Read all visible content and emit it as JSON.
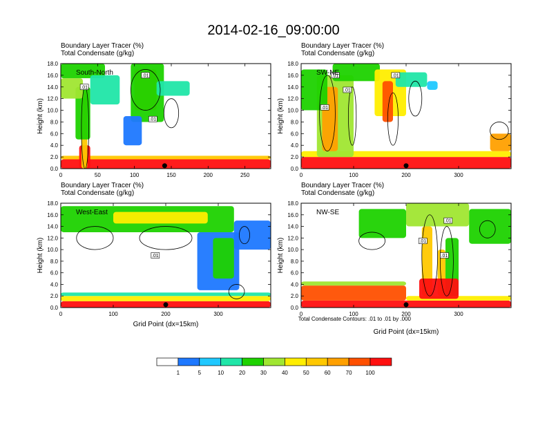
{
  "figure": {
    "title": "2014-02-16_09:00:00",
    "y_label": "Height (km)",
    "x_label": "Grid Point (dx=15km)",
    "line1": "Boundary Layer Tracer    (%)",
    "line2": "Total Condensate    (g/kg)",
    "contour_note": "Total Condensate Contours: .01 to .01 by .000",
    "contour_label": ".01"
  },
  "colors": {
    "palette": [
      "#ffffff",
      "#1e78ff",
      "#20c8ff",
      "#20e6a8",
      "#1ed200",
      "#a0e632",
      "#ffee00",
      "#ffc800",
      "#ffa000",
      "#ff5000",
      "#ff1010"
    ],
    "levels": [
      1,
      5,
      10,
      20,
      30,
      40,
      50,
      60,
      70,
      100
    ]
  },
  "chart_data": [
    {
      "type": "heatmap",
      "cross_section": "South-North",
      "xlim": [
        0,
        285
      ],
      "ylim": [
        0,
        18
      ],
      "x_ticks": [
        0,
        50,
        100,
        150,
        200,
        250
      ],
      "y_ticks": [
        0,
        2,
        4,
        6,
        8,
        10,
        12,
        14,
        16,
        18
      ],
      "y_tick_labels": [
        "0.0",
        "2.0",
        "4.0",
        "6.0",
        "8.0",
        "10.0",
        "12.0",
        "14.0",
        "16.0",
        "18.0"
      ],
      "marker_x": 141,
      "features": [
        {
          "x0": 0,
          "x1": 285,
          "z0": 0,
          "z1": 1.6,
          "v": 100
        },
        {
          "x0": 0,
          "x1": 285,
          "z0": 1.6,
          "z1": 2.2,
          "v": 55
        },
        {
          "x0": 25,
          "x1": 40,
          "z0": 0,
          "z1": 4,
          "v": 100
        },
        {
          "x0": 28,
          "x1": 36,
          "z0": 0,
          "z1": 14,
          "v": 55
        },
        {
          "x0": 20,
          "x1": 40,
          "z0": 5,
          "z1": 14,
          "v": 25
        },
        {
          "x0": 0,
          "x1": 30,
          "z0": 12,
          "z1": 15.5,
          "v": 30
        },
        {
          "x0": 0,
          "x1": 60,
          "z0": 15.5,
          "z1": 18,
          "v": 25
        },
        {
          "x0": 40,
          "x1": 80,
          "z0": 11,
          "z1": 16,
          "v": 12
        },
        {
          "x0": 100,
          "x1": 130,
          "z0": 10,
          "z1": 17,
          "v": 65
        },
        {
          "x0": 95,
          "x1": 140,
          "z0": 8,
          "z1": 18,
          "v": 20
        },
        {
          "x0": 85,
          "x1": 110,
          "z0": 4,
          "z1": 9,
          "v": 3
        },
        {
          "x0": 130,
          "x1": 175,
          "z0": 12.5,
          "z1": 15,
          "v": 12
        }
      ],
      "contours": [
        {
          "x0": 28,
          "x1": 38,
          "z0": 0,
          "z1": 14
        },
        {
          "x0": 95,
          "x1": 135,
          "z0": 10,
          "z1": 17
        },
        {
          "x0": 140,
          "x1": 160,
          "z0": 7,
          "z1": 12
        }
      ],
      "contour_labels": [
        {
          "x": 32,
          "z": 14
        },
        {
          "x": 115,
          "z": 16
        },
        {
          "x": 125,
          "z": 8.5
        }
      ]
    },
    {
      "type": "heatmap",
      "cross_section": "SW-NE",
      "xlim": [
        0,
        400
      ],
      "ylim": [
        0,
        18
      ],
      "x_ticks": [
        0,
        100,
        200,
        300
      ],
      "y_ticks": [
        0,
        2,
        4,
        6,
        8,
        10,
        12,
        14,
        16,
        18
      ],
      "y_tick_labels": [
        "0.0",
        "2.0",
        "4.0",
        "6.0",
        "8.0",
        "10.0",
        "12.0",
        "14.0",
        "16.0",
        "18.0"
      ],
      "marker_x": 200,
      "features": [
        {
          "x0": 0,
          "x1": 400,
          "z0": 0,
          "z1": 2,
          "v": 100
        },
        {
          "x0": 0,
          "x1": 400,
          "z0": 2,
          "z1": 3,
          "v": 45
        },
        {
          "x0": 30,
          "x1": 100,
          "z0": 2,
          "z1": 16,
          "v": 30
        },
        {
          "x0": 40,
          "x1": 70,
          "z0": 3,
          "z1": 14,
          "v": 65
        },
        {
          "x0": 0,
          "x1": 50,
          "z0": 10,
          "z1": 17,
          "v": 25
        },
        {
          "x0": 60,
          "x1": 150,
          "z0": 15,
          "z1": 18,
          "v": 20
        },
        {
          "x0": 140,
          "x1": 200,
          "z0": 9,
          "z1": 17,
          "v": 40
        },
        {
          "x0": 155,
          "x1": 175,
          "z0": 8,
          "z1": 15,
          "v": 70
        },
        {
          "x0": 180,
          "x1": 240,
          "z0": 14,
          "z1": 16.5,
          "v": 10
        },
        {
          "x0": 240,
          "x1": 260,
          "z0": 13.5,
          "z1": 15,
          "v": 5
        },
        {
          "x0": 360,
          "x1": 400,
          "z0": 3,
          "z1": 6,
          "v": 60
        }
      ],
      "contours": [
        {
          "x0": 35,
          "x1": 65,
          "z0": 3,
          "z1": 16
        },
        {
          "x0": 90,
          "x1": 105,
          "z0": 4,
          "z1": 14
        },
        {
          "x0": 165,
          "x1": 185,
          "z0": 4,
          "z1": 13
        },
        {
          "x0": 205,
          "x1": 230,
          "z0": 9,
          "z1": 15
        },
        {
          "x0": 360,
          "x1": 395,
          "z0": 5,
          "z1": 8
        }
      ],
      "contour_labels": [
        {
          "x": 45,
          "z": 10.5
        },
        {
          "x": 65,
          "z": 16
        },
        {
          "x": 88,
          "z": 13.5
        },
        {
          "x": 180,
          "z": 16
        }
      ]
    },
    {
      "type": "heatmap",
      "cross_section": "West-East",
      "xlim": [
        0,
        400
      ],
      "ylim": [
        0,
        18
      ],
      "x_ticks": [
        0,
        100,
        200,
        300
      ],
      "y_ticks": [
        0,
        2,
        4,
        6,
        8,
        10,
        12,
        14,
        16,
        18
      ],
      "y_tick_labels": [
        "0.0",
        "2.0",
        "4.0",
        "6.0",
        "8.0",
        "10.0",
        "12.0",
        "14.0",
        "16.0",
        "18.0"
      ],
      "marker_x": 200,
      "features": [
        {
          "x0": 0,
          "x1": 400,
          "z0": 0,
          "z1": 1.1,
          "v": 100
        },
        {
          "x0": 0,
          "x1": 400,
          "z0": 1.1,
          "z1": 2,
          "v": 45
        },
        {
          "x0": 0,
          "x1": 400,
          "z0": 2,
          "z1": 2.6,
          "v": 10
        },
        {
          "x0": 0,
          "x1": 330,
          "z0": 13,
          "z1": 17.5,
          "v": 20
        },
        {
          "x0": 100,
          "x1": 280,
          "z0": 14.5,
          "z1": 16.5,
          "v": 45
        },
        {
          "x0": 260,
          "x1": 340,
          "z0": 3,
          "z1": 13,
          "v": 3
        },
        {
          "x0": 290,
          "x1": 330,
          "z0": 5,
          "z1": 12,
          "v": 20
        },
        {
          "x0": 330,
          "x1": 400,
          "z0": 10,
          "z1": 15,
          "v": 3
        }
      ],
      "contours": [
        {
          "x0": 30,
          "x1": 100,
          "z0": 10,
          "z1": 14
        },
        {
          "x0": 150,
          "x1": 250,
          "z0": 10,
          "z1": 14
        },
        {
          "x0": 320,
          "x1": 350,
          "z0": 1.5,
          "z1": 4
        },
        {
          "x0": 340,
          "x1": 360,
          "z0": 11,
          "z1": 14
        }
      ],
      "contour_labels": [
        {
          "x": 180,
          "z": 9
        }
      ]
    },
    {
      "type": "heatmap",
      "cross_section": "NW-SE",
      "xlim": [
        0,
        400
      ],
      "ylim": [
        0,
        18
      ],
      "x_ticks": [
        0,
        100,
        200,
        300
      ],
      "y_ticks": [
        0,
        2,
        4,
        6,
        8,
        10,
        12,
        14,
        16,
        18
      ],
      "y_tick_labels": [
        "0.0",
        "2.0",
        "4.0",
        "6.0",
        "8.0",
        "10.0",
        "12.0",
        "14.0",
        "16.0",
        "18.0"
      ],
      "marker_x": 200,
      "features": [
        {
          "x0": 0,
          "x1": 400,
          "z0": 0,
          "z1": 1.2,
          "v": 100
        },
        {
          "x0": 0,
          "x1": 200,
          "z0": 1.2,
          "z1": 3.8,
          "v": 70
        },
        {
          "x0": 0,
          "x1": 200,
          "z0": 3.8,
          "z1": 4.5,
          "v": 30
        },
        {
          "x0": 200,
          "x1": 400,
          "z0": 1.2,
          "z1": 2,
          "v": 45
        },
        {
          "x0": 110,
          "x1": 200,
          "z0": 12,
          "z1": 17,
          "v": 25
        },
        {
          "x0": 200,
          "x1": 320,
          "z0": 14,
          "z1": 18,
          "v": 30
        },
        {
          "x0": 320,
          "x1": 400,
          "z0": 11,
          "z1": 17,
          "v": 25
        },
        {
          "x0": 230,
          "x1": 250,
          "z0": 2,
          "z1": 14,
          "v": 55
        },
        {
          "x0": 260,
          "x1": 275,
          "z0": 2,
          "z1": 10,
          "v": 55
        },
        {
          "x0": 275,
          "x1": 300,
          "z0": 2,
          "z1": 12,
          "v": 20
        },
        {
          "x0": 225,
          "x1": 300,
          "z0": 1.5,
          "z1": 5,
          "v": 100
        }
      ],
      "contours": [
        {
          "x0": 230,
          "x1": 260,
          "z0": 2,
          "z1": 16
        },
        {
          "x0": 265,
          "x1": 290,
          "z0": 2,
          "z1": 14
        },
        {
          "x0": 110,
          "x1": 160,
          "z0": 10,
          "z1": 13
        },
        {
          "x0": 340,
          "x1": 370,
          "z0": 12,
          "z1": 15
        }
      ],
      "contour_labels": [
        {
          "x": 280,
          "z": 15
        },
        {
          "x": 232,
          "z": 11.5
        },
        {
          "x": 273,
          "z": 9
        }
      ]
    }
  ]
}
